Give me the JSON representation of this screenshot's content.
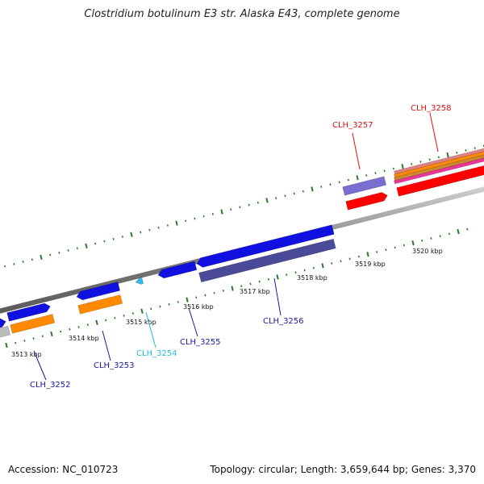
{
  "title": "Clostridium botulinum E3 str. Alaska E43, complete genome",
  "footer": {
    "accession": "Accession: NC_010723",
    "topology": "Topology: circular; Length: 3,659,644 bp; Genes: 3,370"
  },
  "kbp_ticks": [
    "3513 kbp",
    "3514 kbp",
    "3515 kbp",
    "3516 kbp",
    "3517 kbp",
    "3518 kbp",
    "3519 kbp",
    "3520 kbp"
  ],
  "genes": [
    {
      "name": "CLH_3252",
      "color": "#1a1aa0"
    },
    {
      "name": "CLH_3253",
      "color": "#1a1aa0"
    },
    {
      "name": "CLH_3254",
      "color": "#22bbdd"
    },
    {
      "name": "CLH_3255",
      "color": "#1a1aa0"
    },
    {
      "name": "CLH_3256",
      "color": "#1a1aa0"
    },
    {
      "name": "CLH_3257",
      "color": "#dd1111"
    },
    {
      "name": "CLH_3258",
      "color": "#dd1111"
    }
  ],
  "colors": {
    "backbone": "#888888",
    "ticks": "#2a7a2a",
    "blue_gene": "#1010e0",
    "orange_gene": "#ff8a00",
    "cyan_gene": "#33bbee",
    "navy_band": "#4a4a99",
    "purple_band": "#7a6fd0",
    "red_gene": "#ff0000",
    "pink_gene": "#ee3399"
  }
}
